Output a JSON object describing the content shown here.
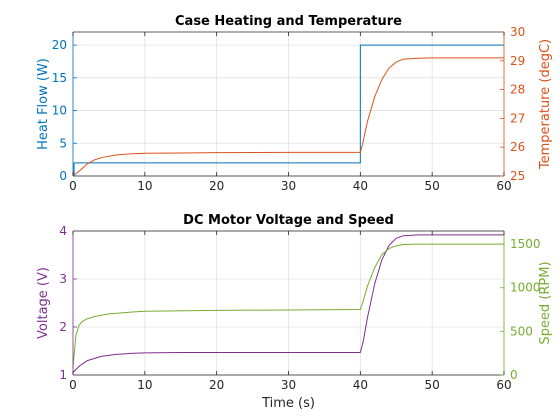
{
  "chart_data": [
    {
      "type": "line",
      "title": "Case Heating and Temperature",
      "xlabel": "",
      "xlim": [
        0,
        60
      ],
      "xticks": [
        0,
        10,
        20,
        30,
        40,
        50,
        60
      ],
      "grid": true,
      "left_axis": {
        "label": "Heat Flow (W)",
        "ylim": [
          0,
          22
        ],
        "ticks": [
          0,
          5,
          10,
          15,
          20
        ],
        "color": "#0072BD"
      },
      "right_axis": {
        "label": "Temperature (degC)",
        "ylim": [
          25,
          30
        ],
        "ticks": [
          25,
          26,
          27,
          28,
          29,
          30
        ],
        "color": "#D95319"
      },
      "series": [
        {
          "axis": "left",
          "color": "#0072BD",
          "step": true,
          "x": [
            0,
            0.15,
            0.15,
            40,
            40,
            60
          ],
          "y": [
            0,
            0,
            2,
            2,
            20,
            20
          ]
        },
        {
          "axis": "right",
          "color": "#D95319",
          "x": [
            0,
            1,
            2,
            3,
            4,
            6,
            8,
            10,
            15,
            20,
            30,
            40,
            40.3,
            41,
            42,
            43,
            44,
            45,
            46,
            48,
            50,
            60
          ],
          "y": [
            25.0,
            25.2,
            25.42,
            25.56,
            25.64,
            25.73,
            25.77,
            25.79,
            25.8,
            25.81,
            25.82,
            25.82,
            26.1,
            26.9,
            27.75,
            28.35,
            28.75,
            28.96,
            29.06,
            29.09,
            29.1,
            29.1
          ]
        }
      ]
    },
    {
      "type": "line",
      "title": "DC Motor Voltage and Speed",
      "xlabel": "Time (s)",
      "xlim": [
        0,
        60
      ],
      "xticks": [
        0,
        10,
        20,
        30,
        40,
        50,
        60
      ],
      "grid": true,
      "left_axis": {
        "label": "Voltage (V)",
        "ylim": [
          1,
          4
        ],
        "ticks": [
          1,
          2,
          3,
          4
        ],
        "color": "#7E2F8E"
      },
      "right_axis": {
        "label": "Speed (RPM)",
        "ylim": [
          0,
          1650
        ],
        "ticks": [
          0,
          500,
          1000,
          1500
        ],
        "color": "#77AC30"
      },
      "series": [
        {
          "axis": "left",
          "color": "#7E2F8E",
          "x": [
            0,
            0.1,
            1,
            2,
            4,
            6,
            8,
            10,
            15,
            20,
            30,
            40,
            40.4,
            41,
            42,
            43,
            44,
            45,
            46,
            48,
            50,
            60
          ],
          "y": [
            1.05,
            1.07,
            1.2,
            1.3,
            1.39,
            1.43,
            1.45,
            1.46,
            1.47,
            1.47,
            1.47,
            1.47,
            1.7,
            2.2,
            2.9,
            3.4,
            3.7,
            3.85,
            3.9,
            3.92,
            3.92,
            3.92
          ]
        },
        {
          "axis": "right",
          "color": "#77AC30",
          "x": [
            0,
            0.1,
            0.4,
            0.8,
            1.2,
            2,
            3,
            5,
            8,
            10,
            20,
            30,
            40,
            40.4,
            41,
            42,
            43,
            44,
            45,
            46,
            48,
            50,
            60
          ],
          "y": [
            80,
            180,
            450,
            560,
            610,
            645,
            670,
            700,
            720,
            730,
            740,
            745,
            750,
            850,
            1020,
            1230,
            1380,
            1450,
            1480,
            1495,
            1500,
            1500,
            1500
          ]
        }
      ]
    }
  ]
}
